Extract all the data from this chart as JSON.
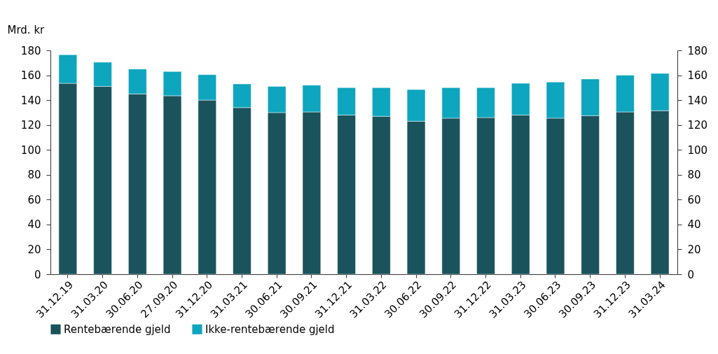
{
  "chart_data": {
    "type": "bar",
    "ylabel": "Mrd. kr",
    "stacked": true,
    "legend": "bottom",
    "grid": false,
    "categories": [
      "31.12.19",
      "31.03.20",
      "30.06.20",
      "27.09.20",
      "31.12.20",
      "31.03.21",
      "30.06.21",
      "30.09.21",
      "31.12.21",
      "31.03.22",
      "30.06.22",
      "30.09.22",
      "31.12.22",
      "31.03.23",
      "30.06.23",
      "30.09.23",
      "31.12.23",
      "31.03.24"
    ],
    "series": [
      {
        "name": "Rentebærende gjeld",
        "color": "#1a535c",
        "values": [
          153.5,
          151,
          145,
          143.5,
          140,
          134,
          130,
          130.5,
          128,
          127,
          123,
          125.5,
          126,
          128,
          125.5,
          127.5,
          130.5,
          131.5
        ]
      },
      {
        "name": "Ikke-rentebærende gjeld",
        "color": "#0ea5be",
        "values": [
          23,
          19.5,
          20,
          19.5,
          20.5,
          19,
          21,
          21.5,
          22,
          23,
          25.5,
          24.5,
          24,
          25.5,
          29,
          29.5,
          29.5,
          30
        ]
      }
    ],
    "ylim": [
      0,
      180
    ],
    "yticks": [
      0,
      20,
      40,
      60,
      80,
      100,
      120,
      140,
      160,
      180
    ],
    "y2lim": [
      0,
      180
    ],
    "y2ticks": [
      0,
      20,
      40,
      60,
      80,
      100,
      120,
      140,
      160,
      180
    ]
  }
}
